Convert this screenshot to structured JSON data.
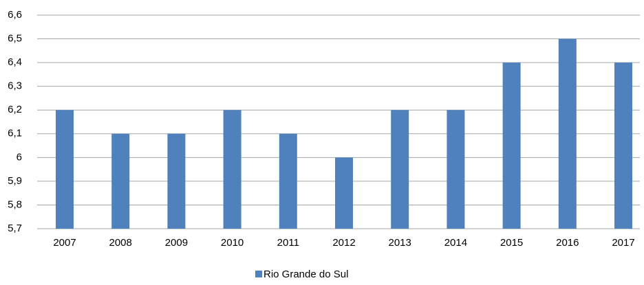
{
  "chart_data": {
    "type": "bar",
    "categories": [
      "2007",
      "2008",
      "2009",
      "2010",
      "2011",
      "2012",
      "2013",
      "2014",
      "2015",
      "2016",
      "2017"
    ],
    "series": [
      {
        "name": "Rio Grande do Sul",
        "color": "#4f81bd",
        "values": [
          6.2,
          6.1,
          6.1,
          6.2,
          6.1,
          6.0,
          6.2,
          6.2,
          6.4,
          6.5,
          6.4
        ]
      }
    ],
    "ylim": [
      5.7,
      6.6
    ],
    "yticks": [
      {
        "value": 5.7,
        "label": "5,7"
      },
      {
        "value": 5.8,
        "label": "5,8"
      },
      {
        "value": 5.9,
        "label": "5,9"
      },
      6,
      {
        "value": 6.1,
        "label": "6,1"
      },
      {
        "value": 6.2,
        "label": "6,2"
      },
      {
        "value": 6.3,
        "label": "6,3"
      },
      {
        "value": 6.4,
        "label": "6,4"
      },
      {
        "value": 6.5,
        "label": "6,5"
      },
      {
        "value": 6.6,
        "label": "6,6"
      }
    ],
    "grid": true,
    "legend": "bottom"
  }
}
